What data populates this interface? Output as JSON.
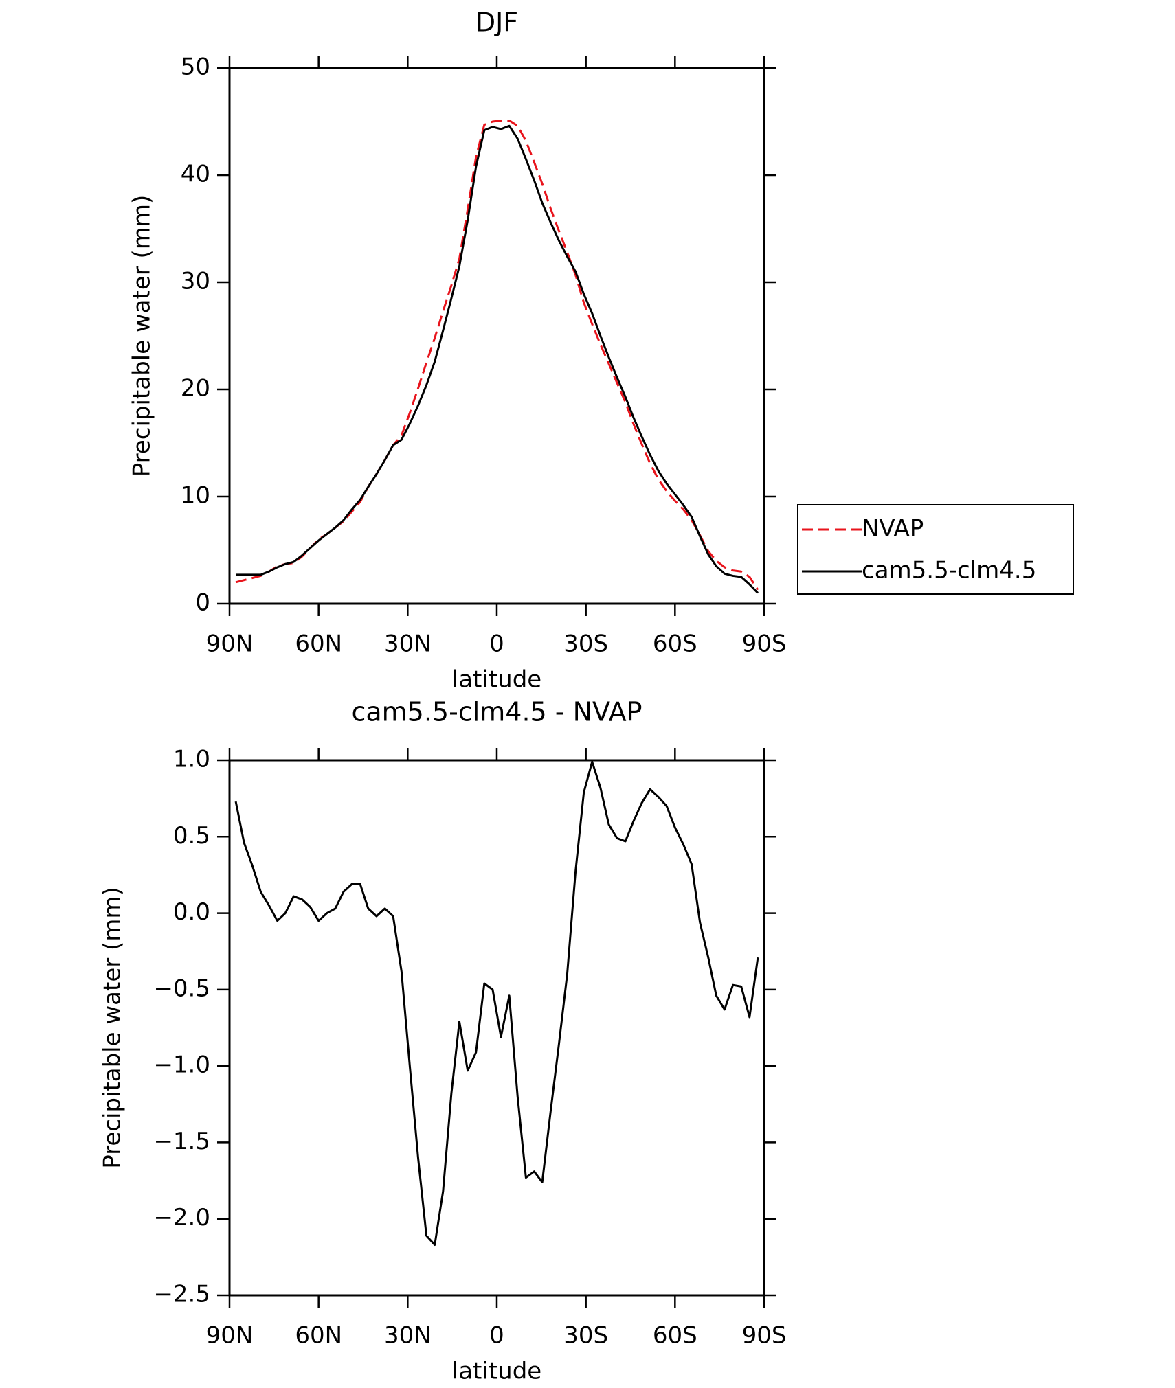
{
  "chart_data": [
    {
      "type": "line",
      "title": "DJF",
      "x_label": "latitude",
      "y_label": "Precipitable water (mm)",
      "x": [
        87.9,
        85.1,
        82.3,
        79.5,
        76.7,
        73.9,
        71.2,
        68.4,
        65.6,
        62.8,
        60.0,
        57.2,
        54.4,
        51.6,
        48.8,
        46.0,
        43.3,
        40.5,
        37.7,
        34.9,
        32.1,
        29.3,
        26.5,
        23.7,
        20.9,
        18.1,
        15.3,
        12.6,
        9.8,
        7.0,
        4.2,
        1.4,
        -1.4,
        -4.2,
        -7.0,
        -9.8,
        -12.6,
        -15.3,
        -18.1,
        -20.9,
        -23.7,
        -26.5,
        -29.3,
        -32.1,
        -34.9,
        -37.7,
        -40.5,
        -43.3,
        -46.0,
        -48.8,
        -51.6,
        -54.4,
        -57.2,
        -60.0,
        -62.8,
        -65.6,
        -68.4,
        -71.2,
        -73.9,
        -76.7,
        -79.5,
        -82.3,
        -85.1,
        -87.9
      ],
      "series": [
        {
          "name": "NVAP",
          "color": "#e8141c",
          "line_style": "dashed",
          "values": [
            2.0,
            2.2,
            2.4,
            2.6,
            3.0,
            3.5,
            3.7,
            3.8,
            4.4,
            5.2,
            6.0,
            6.5,
            7.1,
            7.7,
            8.6,
            9.5,
            10.9,
            12.1,
            13.4,
            14.8,
            15.7,
            17.8,
            20.1,
            22.5,
            24.8,
            27.3,
            29.7,
            32.2,
            36.8,
            41.7,
            44.7,
            45.0,
            45.1,
            45.1,
            44.6,
            43.2,
            41.2,
            39.2,
            36.9,
            34.8,
            32.8,
            30.7,
            28.1,
            26.1,
            24.2,
            22.4,
            20.6,
            18.8,
            16.8,
            14.9,
            13.1,
            11.6,
            10.5,
            9.6,
            8.8,
            7.8,
            6.4,
            4.9,
            4.0,
            3.4,
            3.1,
            3.0,
            2.5,
            1.3
          ]
        },
        {
          "name": "cam5.5-clm4.5",
          "color": "#000000",
          "line_style": "solid",
          "values": [
            2.7,
            2.7,
            2.7,
            2.7,
            3.0,
            3.4,
            3.7,
            3.9,
            4.5,
            5.2,
            5.9,
            6.5,
            7.1,
            7.8,
            8.8,
            9.7,
            10.9,
            12.1,
            13.4,
            14.8,
            15.3,
            16.8,
            18.5,
            20.4,
            22.6,
            25.5,
            28.5,
            31.5,
            35.8,
            40.8,
            44.2,
            44.5,
            44.3,
            44.6,
            43.4,
            41.5,
            39.5,
            37.4,
            35.6,
            33.9,
            32.4,
            31.0,
            28.9,
            27.1,
            25.0,
            23.0,
            21.1,
            19.3,
            17.4,
            15.6,
            13.9,
            12.4,
            11.2,
            10.2,
            9.2,
            8.1,
            6.3,
            4.6,
            3.5,
            2.8,
            2.6,
            2.5,
            1.8,
            1.0
          ]
        }
      ],
      "xlim": [
        90,
        -90
      ],
      "xticks": [
        {
          "value": 90,
          "label": "90N"
        },
        {
          "value": 60,
          "label": "60N"
        },
        {
          "value": 30,
          "label": "30N"
        },
        0,
        {
          "value": -30,
          "label": "30S"
        },
        {
          "value": -60,
          "label": "60S"
        },
        {
          "value": -90,
          "label": "90S"
        }
      ],
      "ylim": [
        0,
        50
      ],
      "yticks": [
        0,
        10,
        20,
        30,
        40,
        50
      ],
      "grid": false,
      "legend": "right"
    },
    {
      "type": "line",
      "title": "cam5.5-clm4.5 - NVAP",
      "x_label": "latitude",
      "y_label": "Precipitable water (mm)",
      "x": [
        87.9,
        85.1,
        82.3,
        79.5,
        76.7,
        73.9,
        71.2,
        68.4,
        65.6,
        62.8,
        60.0,
        57.2,
        54.4,
        51.6,
        48.8,
        46.0,
        43.3,
        40.5,
        37.7,
        34.9,
        32.1,
        29.3,
        26.5,
        23.7,
        20.9,
        18.1,
        15.3,
        12.6,
        9.8,
        7.0,
        4.2,
        1.4,
        -1.4,
        -4.2,
        -7.0,
        -9.8,
        -12.6,
        -15.3,
        -18.1,
        -20.9,
        -23.7,
        -26.5,
        -29.3,
        -32.1,
        -34.9,
        -37.7,
        -40.5,
        -43.3,
        -46.0,
        -48.8,
        -51.6,
        -54.4,
        -57.2,
        -60.0,
        -62.8,
        -65.6,
        -68.4,
        -71.2,
        -73.9,
        -76.7,
        -79.5,
        -82.3,
        -85.1,
        -87.9
      ],
      "series": [
        {
          "color": "#000000",
          "line_style": "solid",
          "values": [
            0.73,
            0.46,
            0.31,
            0.14,
            0.05,
            -0.05,
            0.0,
            0.11,
            0.09,
            0.04,
            -0.05,
            0.0,
            0.03,
            0.14,
            0.19,
            0.19,
            0.03,
            -0.02,
            0.03,
            -0.02,
            -0.38,
            -1.0,
            -1.6,
            -2.11,
            -2.17,
            -1.82,
            -1.18,
            -0.71,
            -1.03,
            -0.91,
            -0.46,
            -0.5,
            -0.81,
            -0.54,
            -1.2,
            -1.73,
            -1.69,
            -1.76,
            -1.3,
            -0.86,
            -0.4,
            0.27,
            0.79,
            0.99,
            0.82,
            0.58,
            0.49,
            0.47,
            0.6,
            0.72,
            0.81,
            0.76,
            0.7,
            0.56,
            0.45,
            0.32,
            -0.06,
            -0.29,
            -0.54,
            -0.63,
            -0.47,
            -0.48,
            -0.68,
            -0.29
          ]
        }
      ],
      "xlim": [
        90,
        -90
      ],
      "xticks": [
        {
          "value": 90,
          "label": "90N"
        },
        {
          "value": 60,
          "label": "60N"
        },
        {
          "value": 30,
          "label": "30N"
        },
        0,
        {
          "value": -30,
          "label": "30S"
        },
        {
          "value": -60,
          "label": "60S"
        },
        {
          "value": -90,
          "label": "90S"
        }
      ],
      "ylim": [
        -2.5,
        1
      ],
      "yticks": [
        {
          "value": 1,
          "label": "1.0"
        },
        {
          "value": 0.5,
          "label": "0.5"
        },
        {
          "value": 0,
          "label": "0.0"
        },
        {
          "value": -0.5,
          "label": "−0.5"
        },
        {
          "value": -1,
          "label": "−1.0"
        },
        {
          "value": -1.5,
          "label": "−1.5"
        },
        {
          "value": -2,
          "label": "−2.0"
        },
        {
          "value": -2.5,
          "label": "−2.5"
        }
      ],
      "grid": false
    }
  ]
}
